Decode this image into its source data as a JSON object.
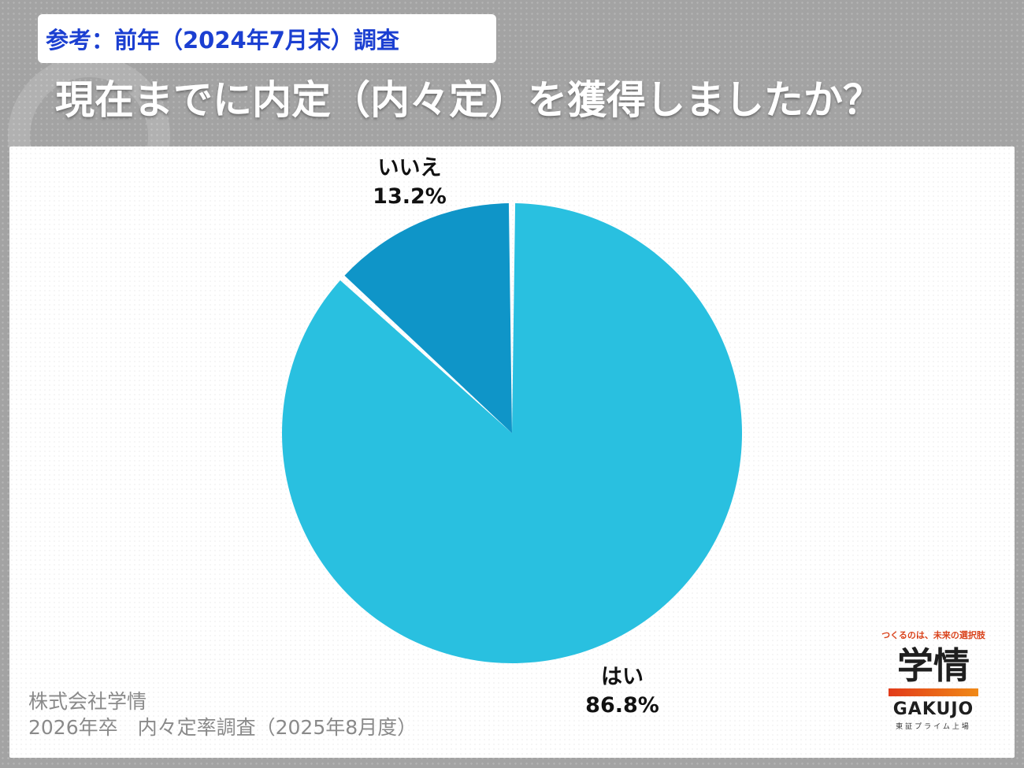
{
  "reference_badge": "参考：前年（2024年7月末）調査",
  "question": "現在までに内定（内々定）を獲得しましたか？",
  "chart_data": {
    "type": "pie",
    "slices": [
      {
        "label": "はい",
        "value_label": "86.8%",
        "value": 86.8,
        "color": "#29c0e0",
        "exploded": false
      },
      {
        "label": "いいえ",
        "value_label": "13.2%",
        "value": 13.2,
        "color": "#0f95c8",
        "exploded": true
      }
    ],
    "start": "12 o'clock",
    "direction": "clockwise"
  },
  "source": {
    "line1": "株式会社学情",
    "line2": "2026年卒　内々定率調査（2025年8月度）"
  },
  "logo": {
    "tagline": "つくるのは、未来の選択肢",
    "mark": "学情",
    "brand": "GAKUJO",
    "listing": "東証プライム上場",
    "accent_color": "#e8501a"
  }
}
